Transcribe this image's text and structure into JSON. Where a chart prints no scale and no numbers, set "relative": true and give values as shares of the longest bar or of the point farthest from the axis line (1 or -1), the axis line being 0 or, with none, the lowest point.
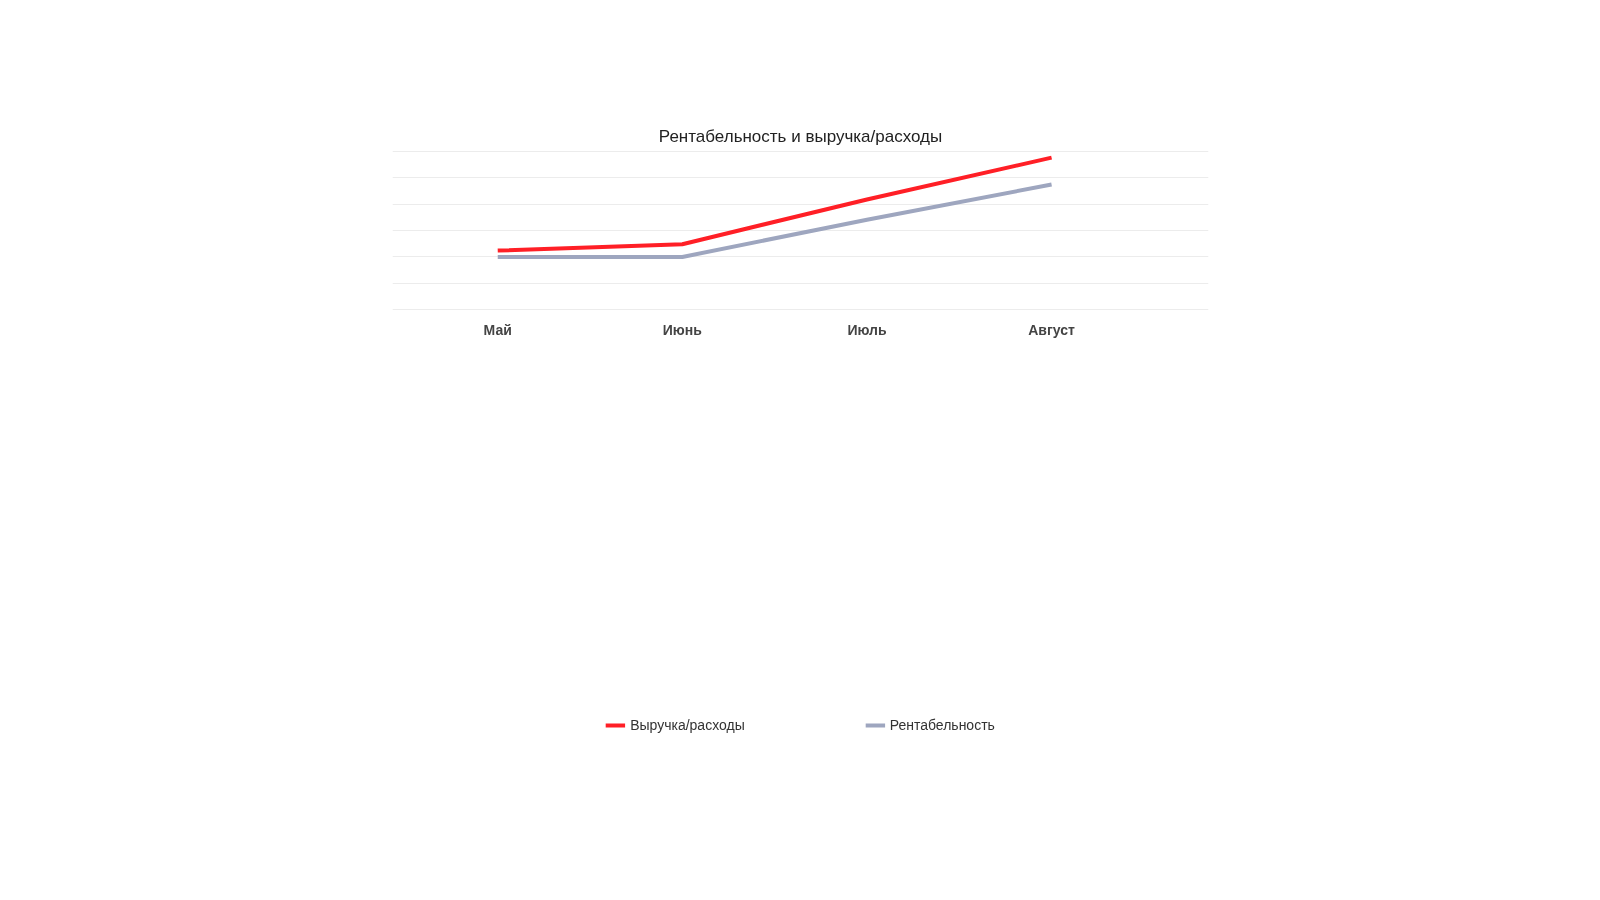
{
  "chart_data": {
    "type": "line",
    "title": "Рентабельность и выручка/расходы",
    "relative": true,
    "categories": [
      "Май",
      "Июнь",
      "Июль",
      "Август"
    ],
    "series": [
      {
        "name": "Выручка/расходы",
        "color": "#ff1f26",
        "values": [
          0.389,
          0.431,
          0.725,
          1.0
        ]
      },
      {
        "name": "Рентабельность",
        "color": "#9ea6bf",
        "values": [
          0.347,
          0.347,
          0.592,
          0.823
        ]
      }
    ],
    "grid": "y",
    "legend": "bottom",
    "marker": "none",
    "line_style": "solid"
  }
}
